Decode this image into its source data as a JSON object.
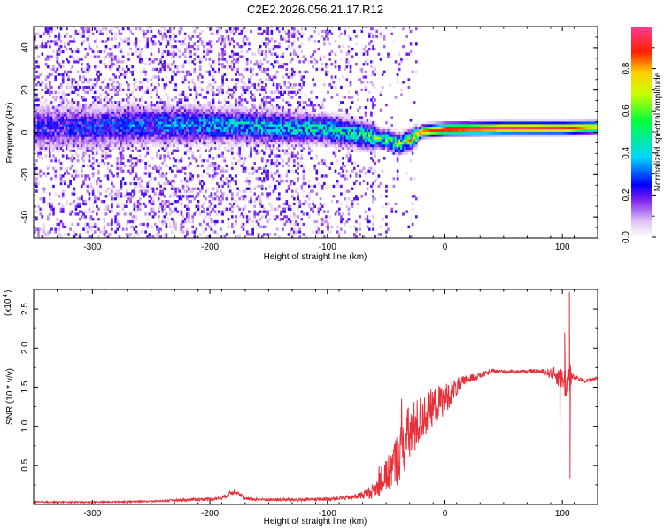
{
  "figure": {
    "title": "C2E2.2026.056.21.17.R12"
  },
  "chart_data": [
    {
      "type": "heatmap",
      "name": "spectrogram",
      "xlabel": "Height of straight line (km)",
      "ylabel": "Frequency (Hz)",
      "xlim": [
        -350,
        130
      ],
      "ylim": [
        -50,
        50
      ],
      "xticks": [
        -300,
        -200,
        -100,
        0,
        100
      ],
      "yticks": [
        -40,
        -20,
        0,
        20,
        40
      ],
      "colorbar": {
        "label": "Normalized spectral amplitude",
        "range": [
          0,
          1
        ],
        "ticks": [
          0.0,
          0.2,
          0.4,
          0.6,
          0.8
        ],
        "tick_labels": [
          "0.0",
          "0.2",
          "0.4",
          "0.6",
          "0.8"
        ]
      },
      "features": {
        "ridge_center_hz": [
          [
            -350,
            2
          ],
          [
            -300,
            2
          ],
          [
            -250,
            3
          ],
          [
            -200,
            3
          ],
          [
            -150,
            2
          ],
          [
            -100,
            1
          ],
          [
            -70,
            -2
          ],
          [
            -50,
            -4
          ],
          [
            -40,
            -6
          ],
          [
            -30,
            -4
          ],
          [
            -20,
            0
          ],
          [
            0,
            1
          ],
          [
            50,
            1.5
          ],
          [
            100,
            1.5
          ],
          [
            130,
            2
          ]
        ],
        "ridge_peak_amplitude": [
          [
            -350,
            0.25
          ],
          [
            -300,
            0.3
          ],
          [
            -250,
            0.35
          ],
          [
            -200,
            0.4
          ],
          [
            -150,
            0.45
          ],
          [
            -100,
            0.5
          ],
          [
            -70,
            0.55
          ],
          [
            -50,
            0.65
          ],
          [
            -30,
            0.75
          ],
          [
            -20,
            0.85
          ],
          [
            0,
            0.95
          ],
          [
            50,
            1.0
          ],
          [
            100,
            0.95
          ],
          [
            130,
            0.75
          ]
        ]
      }
    },
    {
      "type": "line",
      "name": "snr",
      "xlabel": "Height of straight line (km)",
      "ylabel": "SNR (10 * v/v)",
      "yscale_label": "(x10",
      "yscale_exp": "4",
      "xlim": [
        -350,
        130
      ],
      "ylim": [
        0,
        2.75
      ],
      "xticks": [
        -300,
        -200,
        -100,
        0,
        100
      ],
      "yticks": [
        0.5,
        1.0,
        1.5,
        2.0,
        2.5
      ],
      "ytick_labels": [
        "0.5",
        "1.0",
        "1.5",
        "2.0",
        "2.5"
      ],
      "series": [
        {
          "color": "#e8303a",
          "x": [
            -350,
            -300,
            -250,
            -200,
            -190,
            -178,
            -170,
            -150,
            -120,
            -100,
            -80,
            -70,
            -60,
            -50,
            -40,
            -30,
            -20,
            -10,
            0,
            10,
            20,
            30,
            40,
            60,
            80,
            90,
            95,
            100,
            105,
            106,
            108,
            110,
            115,
            120,
            125,
            130
          ],
          "y": [
            0.03,
            0.03,
            0.04,
            0.07,
            0.08,
            0.18,
            0.07,
            0.06,
            0.06,
            0.07,
            0.09,
            0.12,
            0.18,
            0.35,
            0.6,
            0.9,
            1.1,
            1.25,
            1.35,
            1.5,
            1.6,
            1.65,
            1.7,
            1.7,
            1.7,
            1.68,
            1.65,
            1.6,
            1.5,
            1.7,
            1.62,
            1.62,
            1.6,
            1.58,
            1.6,
            1.62
          ],
          "noise": [
            0.01,
            0.01,
            0.01,
            0.02,
            0.02,
            0.04,
            0.02,
            0.02,
            0.02,
            0.02,
            0.03,
            0.05,
            0.1,
            0.2,
            0.35,
            0.4,
            0.3,
            0.25,
            0.2,
            0.12,
            0.06,
            0.04,
            0.03,
            0.02,
            0.03,
            0.06,
            0.12,
            0.15,
            0.25,
            0.3,
            0.08,
            0.03,
            0.02,
            0.02,
            0.02,
            0.02
          ],
          "spikes": [
            [
              106,
              2.72
            ],
            [
              106.5,
              0.33
            ],
            [
              102,
              2.2
            ],
            [
              98,
              0.9
            ]
          ]
        }
      ]
    }
  ]
}
